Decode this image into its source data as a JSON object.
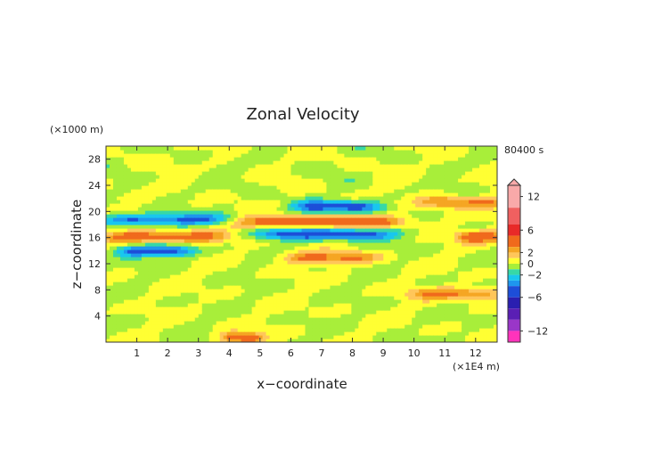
{
  "chart_data": {
    "type": "heatmap",
    "title": "Zonal Velocity",
    "time_label": "80400 s",
    "xlabel": "x−coordinate",
    "ylabel": "z−coordinate",
    "x_unit": "(×1E4 m)",
    "y_unit": "(×1000 m)",
    "xlim": [
      0,
      12.7
    ],
    "ylim": [
      0,
      30
    ],
    "xticks": [
      1,
      2,
      3,
      4,
      5,
      6,
      7,
      8,
      9,
      10,
      11,
      12
    ],
    "yticks": [
      4,
      8,
      12,
      16,
      20,
      24,
      28
    ],
    "xtick_labels": [
      "1",
      "2",
      "3",
      "4",
      "5",
      "6",
      "7",
      "8",
      "9",
      "10",
      "11",
      "12"
    ],
    "ytick_labels": [
      "4",
      "8",
      "12",
      "16",
      "20",
      "24",
      "28"
    ],
    "colorbar": {
      "min": -14,
      "max": 14,
      "extend_top": true,
      "tick_values": [
        12,
        6,
        2,
        0,
        -2,
        -6,
        -12
      ],
      "tick_labels": [
        "12",
        "6",
        "2",
        "0",
        "−2",
        "−6",
        "−12"
      ],
      "levels": [
        {
          "from": 10,
          "to": 14,
          "color": "#f9a9a9"
        },
        {
          "from": 7,
          "to": 10,
          "color": "#f06060"
        },
        {
          "from": 5,
          "to": 7,
          "color": "#e82a28"
        },
        {
          "from": 3,
          "to": 5,
          "color": "#f06a1c"
        },
        {
          "from": 2,
          "to": 3,
          "color": "#f5a623"
        },
        {
          "from": 1,
          "to": 2,
          "color": "#ffc65a"
        },
        {
          "from": 0,
          "to": 1,
          "color": "#ffff33"
        },
        {
          "from": -1,
          "to": 0,
          "color": "#a8ee3a"
        },
        {
          "from": -2,
          "to": -1,
          "color": "#37d8a6"
        },
        {
          "from": -3,
          "to": -2,
          "color": "#19c7ee"
        },
        {
          "from": -4,
          "to": -3,
          "color": "#1e96ee"
        },
        {
          "from": -6,
          "to": -4,
          "color": "#1d4ed8"
        },
        {
          "from": -8,
          "to": -6,
          "color": "#2a1fb0"
        },
        {
          "from": -10,
          "to": -8,
          "color": "#5a1fb4"
        },
        {
          "from": -12,
          "to": -10,
          "color": "#9a36c8"
        },
        {
          "from": -14,
          "to": -12,
          "color": "#ff33bb"
        }
      ]
    },
    "features": [
      {
        "x": [
          0.2,
          3.5
        ],
        "z": 16.2,
        "amp": 4,
        "note": "orange band"
      },
      {
        "x": [
          0.0,
          4.0
        ],
        "z": 18.8,
        "amp": -4.2,
        "note": "blue band"
      },
      {
        "x": [
          0.6,
          2.6
        ],
        "z": 14.0,
        "amp": -4.5,
        "note": "blue band"
      },
      {
        "x": [
          4.3,
          9.3
        ],
        "z": 18.5,
        "amp": 4.5,
        "note": "orange band"
      },
      {
        "x": [
          5.2,
          9.0
        ],
        "z": 16.6,
        "amp": -4.8,
        "note": "blue band"
      },
      {
        "x": [
          6.4,
          8.6
        ],
        "z": 20.8,
        "amp": -4.6,
        "note": "blue band"
      },
      {
        "x": [
          6.0,
          8.5
        ],
        "z": 13.0,
        "amp": 3.2,
        "note": "orange band"
      },
      {
        "x": [
          10.5,
          12.7
        ],
        "z": 21.5,
        "amp": 3.2,
        "note": "orange band"
      },
      {
        "x": [
          11.7,
          12.7
        ],
        "z": 16.2,
        "amp": 4,
        "note": "orange band"
      },
      {
        "x": [
          10.2,
          12.5
        ],
        "z": 7.5,
        "amp": 3.2,
        "note": "orange band"
      },
      {
        "x": [
          4.0,
          4.8
        ],
        "z": 0.7,
        "amp": 4.2,
        "note": "orange blob"
      }
    ]
  }
}
